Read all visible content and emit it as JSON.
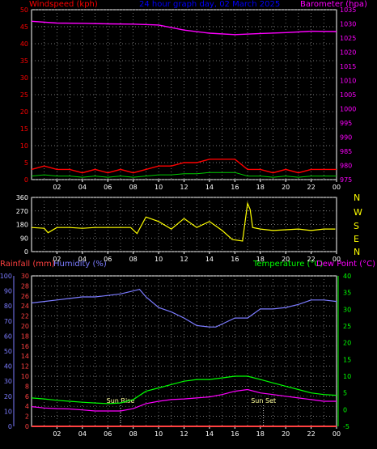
{
  "colors": {
    "wind": "#ff0000",
    "gust": "#ff0000",
    "wind_avg": "#ffffff",
    "wind_green": "#00cc00",
    "baro": "#ff00ff",
    "dir": "#ffff00",
    "hum": "#7b7bff",
    "rain": "#ff4040",
    "temp": "#00ff00",
    "dew": "#ff00ff",
    "grid": "#a0a0a0",
    "title": "#0000ff",
    "sunrise": "#ffff99"
  },
  "header": {
    "wind_label": "Windspeed (kph)",
    "title": "24 hour graph day, 02 March 2025",
    "baro_label": "Barometer (hpa)",
    "rain_label": "Rainfall (mm)",
    "hum_label": "Humidity (%)",
    "temp_label": "Temperature (°C)",
    "dew_label": "Dew Point (°C)"
  },
  "chart_data": [
    {
      "type": "line",
      "panel": "wind_baro",
      "x_ticks": [
        "02",
        "04",
        "06",
        "08",
        "10",
        "12",
        "14",
        "16",
        "18",
        "20",
        "22",
        "00"
      ],
      "y_left_ticks": [
        "0",
        "5",
        "10",
        "15",
        "20",
        "25",
        "30",
        "35",
        "40",
        "45",
        "50"
      ],
      "y_right_ticks": [
        "975",
        "980",
        "985",
        "990",
        "995",
        "1000",
        "1005",
        "1010",
        "1015",
        "1020",
        "1025",
        "1030",
        "1035"
      ],
      "ylim_left": [
        0,
        50
      ],
      "ylim_right": [
        975,
        1035
      ],
      "series": [
        {
          "name": "Barometer (hpa)",
          "x": [
            0,
            2,
            4,
            6,
            8,
            10,
            12,
            14,
            16,
            18,
            20,
            22,
            24
          ],
          "values": [
            1030.9,
            1030.3,
            1030.2,
            1030.0,
            1029.9,
            1029.6,
            1027.8,
            1026.7,
            1026.2,
            1026.6,
            1026.9,
            1027.4,
            1027.3
          ]
        },
        {
          "name": "Windspeed (kph)",
          "x": [
            0,
            1,
            2,
            3,
            4,
            5,
            6,
            7,
            8,
            9,
            10,
            11,
            12,
            13,
            14,
            15,
            16,
            17,
            18,
            19,
            20,
            21,
            22,
            23,
            24
          ],
          "values": [
            3,
            4,
            3,
            3,
            2,
            3,
            2,
            3,
            2,
            3,
            4,
            4,
            5,
            5,
            6,
            6,
            6,
            3,
            3,
            2,
            3,
            2,
            3,
            3,
            3
          ]
        }
      ]
    },
    {
      "type": "line",
      "panel": "direction",
      "x_ticks": [
        "02",
        "04",
        "06",
        "08",
        "10",
        "12",
        "14",
        "16",
        "18",
        "20",
        "22",
        "00"
      ],
      "y_left_ticks": [
        "0",
        "90",
        "180",
        "270",
        "360"
      ],
      "y_right_ticks": [
        "N",
        "E",
        "S",
        "W",
        "N"
      ],
      "ylim": [
        0,
        360
      ],
      "series": [
        {
          "name": "Wind direction",
          "x": [
            0,
            1,
            1.3,
            2,
            3,
            4,
            5,
            6,
            7,
            7.8,
            8.3,
            9,
            10,
            11,
            12,
            13,
            14,
            15,
            15.8,
            16.6,
            17,
            17.2,
            17.4,
            18,
            19,
            20,
            21,
            22,
            23,
            23.9
          ],
          "values": [
            160,
            155,
            125,
            160,
            160,
            155,
            160,
            160,
            160,
            160,
            120,
            230,
            200,
            150,
            220,
            160,
            200,
            140,
            80,
            70,
            320,
            280,
            160,
            150,
            140,
            145,
            150,
            140,
            150,
            150
          ]
        }
      ]
    },
    {
      "type": "line",
      "panel": "hum_temp",
      "x_ticks": [
        "02",
        "04",
        "06",
        "08",
        "10",
        "12",
        "14",
        "16",
        "18",
        "20",
        "22",
        "00"
      ],
      "y_hum_ticks": [
        "0",
        "10",
        "20",
        "30",
        "40",
        "50",
        "60",
        "70",
        "80",
        "90",
        "100"
      ],
      "y_rain_ticks": [
        "0",
        "2",
        "4",
        "6",
        "8",
        "10",
        "12",
        "14",
        "16",
        "18",
        "20",
        "22",
        "24",
        "26",
        "28",
        "30"
      ],
      "y_temp_ticks": [
        "-5",
        "0",
        "5",
        "10",
        "15",
        "20",
        "25",
        "30",
        "35",
        "40"
      ],
      "ylim_hum": [
        0,
        100
      ],
      "ylim_temp": [
        -5,
        40
      ],
      "annotations": {
        "sunrise": "Sun Rise",
        "sunset": "Sun Set",
        "sunrise_time": 7.0,
        "sunset_time": 18.25
      },
      "series": [
        {
          "name": "Humidity (%)",
          "x": [
            0,
            1,
            2,
            3,
            4,
            5,
            6,
            7,
            8,
            8.5,
            9,
            10,
            11,
            12,
            13,
            14,
            14.5,
            15,
            16,
            17,
            18,
            19,
            20,
            21,
            22,
            23,
            24
          ],
          "values": [
            82,
            83,
            84,
            85,
            86,
            86,
            87,
            88,
            90,
            91,
            86,
            79,
            76,
            72,
            67,
            66,
            66,
            68,
            72,
            72,
            78,
            78,
            79,
            81,
            84,
            84,
            83
          ]
        },
        {
          "name": "Temperature (°C)",
          "x": [
            0,
            1,
            2,
            3,
            4,
            5,
            6,
            7,
            8,
            9,
            10,
            11,
            12,
            13,
            14,
            15,
            16,
            17,
            18,
            19,
            20,
            21,
            22,
            23,
            24
          ],
          "values": [
            3.5,
            3.2,
            2.8,
            2.5,
            2.2,
            2.0,
            1.8,
            2.0,
            3.0,
            5.5,
            6.5,
            7.5,
            8.5,
            9.0,
            9.0,
            9.5,
            10.0,
            10.0,
            9.0,
            8.0,
            7.0,
            6.0,
            5.0,
            4.5,
            4.3
          ]
        },
        {
          "name": "Dew Point (°C)",
          "x": [
            0,
            1,
            2,
            3,
            4,
            5,
            6,
            7,
            8,
            9,
            10,
            11,
            12,
            13,
            14,
            15,
            16,
            17,
            18,
            19,
            20,
            21,
            22,
            23,
            24
          ],
          "values": [
            0.9,
            0.5,
            0.3,
            0.2,
            -0.1,
            -0.4,
            -0.4,
            -0.4,
            0.3,
            1.8,
            2.5,
            3.0,
            3.2,
            3.5,
            3.8,
            4.5,
            5.5,
            6.0,
            5.0,
            4.5,
            4.0,
            3.5,
            3.0,
            2.5,
            2.5
          ]
        },
        {
          "name": "Rainfall (mm)",
          "x": [
            0,
            24
          ],
          "values": [
            0,
            0
          ]
        }
      ]
    }
  ],
  "dir_letters": [
    "N",
    "W",
    "S",
    "E",
    "N"
  ]
}
